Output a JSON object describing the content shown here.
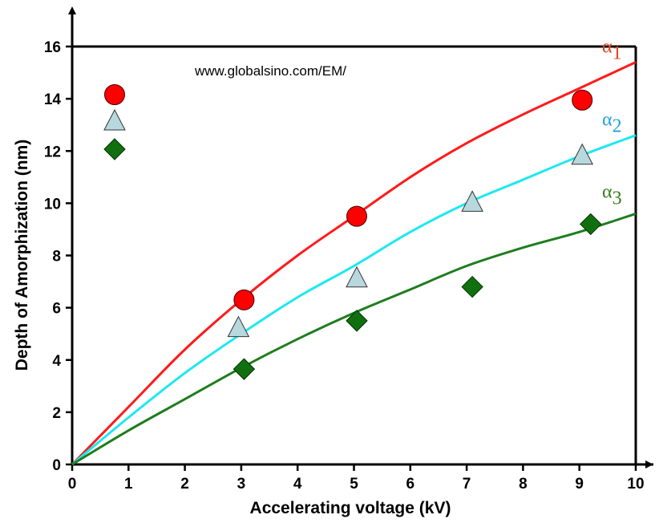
{
  "chart_data": {
    "type": "line",
    "xlabel": "Accelerating voltage (kV)",
    "ylabel": "Depth of Amorphization (nm)",
    "xlim": [
      0,
      10
    ],
    "ylim": [
      0,
      16
    ],
    "xticks": [
      "0",
      "1",
      "2",
      "3",
      "4",
      "5",
      "6",
      "7",
      "8",
      "9",
      "10"
    ],
    "yticks": [
      "0",
      "2",
      "4",
      "6",
      "8",
      "10",
      "12",
      "14",
      "16"
    ],
    "grid": false,
    "watermark": "www.globalsino.com/EM/",
    "curves": [
      {
        "name": "α",
        "sub": "1",
        "color": "#ff1a1a",
        "labelColor": "#e8401c",
        "x": [
          0,
          1,
          2,
          3,
          4,
          5,
          6,
          7,
          8,
          9,
          10
        ],
        "y": [
          0,
          2.2,
          4.4,
          6.3,
          8.0,
          9.5,
          11.0,
          12.3,
          13.4,
          14.4,
          15.4
        ]
      },
      {
        "name": "α",
        "sub": "2",
        "color": "#1ee8f0",
        "labelColor": "#1fa3d6",
        "x": [
          0,
          1,
          2,
          3,
          4,
          5,
          6,
          7,
          8,
          9,
          10
        ],
        "y": [
          0,
          1.8,
          3.5,
          5.0,
          6.4,
          7.6,
          8.9,
          10.0,
          10.9,
          11.8,
          12.6
        ]
      },
      {
        "name": "α",
        "sub": "3",
        "color": "#1e7d1e",
        "labelColor": "#3a7d1e",
        "x": [
          0,
          1,
          2,
          3,
          4,
          5,
          6,
          7,
          8,
          9,
          10
        ],
        "y": [
          0,
          1.3,
          2.5,
          3.7,
          4.8,
          5.8,
          6.7,
          7.6,
          8.3,
          8.9,
          9.6
        ]
      }
    ],
    "points": [
      {
        "marker": "circle",
        "fill": "#ff0000",
        "x": [
          3.05,
          5.05,
          9.05
        ],
        "y": [
          6.3,
          9.5,
          13.95
        ]
      },
      {
        "marker": "triangle",
        "fill": "#b8d8de",
        "x": [
          2.95,
          5.05,
          7.1,
          9.05
        ],
        "y": [
          5.2,
          7.1,
          10.0,
          11.8
        ]
      },
      {
        "marker": "diamond",
        "fill": "#107010",
        "x": [
          3.05,
          5.05,
          7.1,
          9.2
        ],
        "y": [
          3.65,
          5.5,
          6.8,
          9.2
        ]
      }
    ],
    "legend": {
      "placement": "top-left",
      "markers": [
        "circle",
        "triangle",
        "diamond"
      ]
    }
  }
}
